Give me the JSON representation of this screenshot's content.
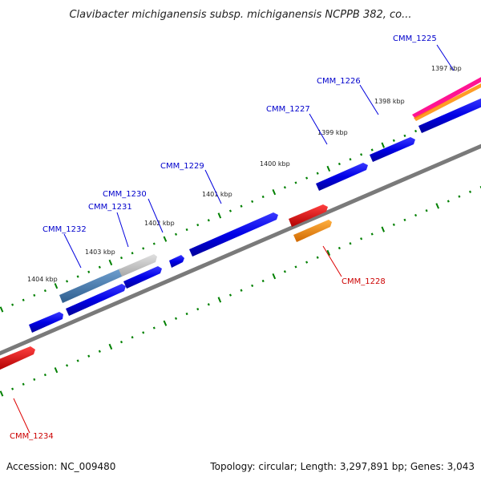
{
  "title": "Clavibacter michiganensis subsp. michiganensis NCPPB 382, co...",
  "footer": {
    "accession": "Accession: NC_009480",
    "topology": "Topology: circular; Length: 3,297,891 bp; Genes: 3,043"
  },
  "kbp_labels": [
    "1397 kbp",
    "1398 kbp",
    "1399 kbp",
    "1400 kbp",
    "1401 kbp",
    "1402 kbp",
    "1403 kbp",
    "1404 kbp"
  ],
  "gene_labels": {
    "CMM_1225": "CMM_1225",
    "CMM_1226": "CMM_1226",
    "CMM_1227": "CMM_1227",
    "CMM_1229": "CMM_1229",
    "CMM_1230": "CMM_1230",
    "CMM_1231": "CMM_1231",
    "CMM_1232": "CMM_1232",
    "CMM_1228": "CMM_1228",
    "CMM_1234": "CMM_1234"
  },
  "colors": {
    "forward_gene": "#0000e0",
    "selected_gene": "#4a7fb0",
    "grey_gene": "#c8c8c8",
    "rna_red": "#e00000",
    "rna_orange": "#ff8c00",
    "tick_green": "#008000",
    "label_blue": "#0000cc",
    "label_red": "#cc0000"
  }
}
